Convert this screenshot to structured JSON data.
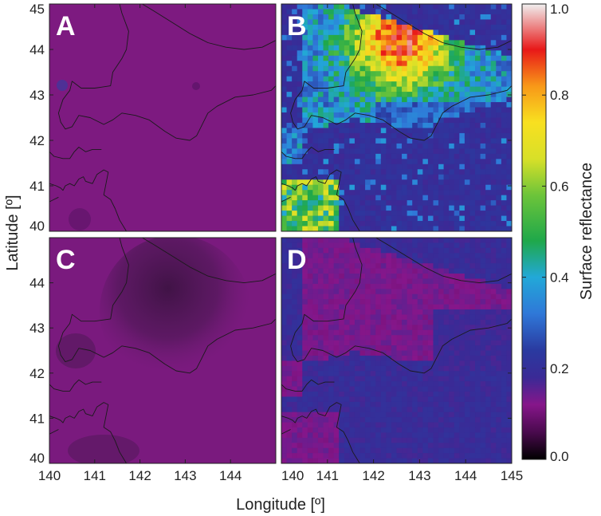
{
  "chart_data": {
    "type": "heatmap",
    "xlabel": "Longitude [º]",
    "ylabel": "Latitude [º]",
    "colorbar_label": "Surface reflectance",
    "xlim": [
      140,
      145
    ],
    "ylim": [
      40,
      45
    ],
    "clim": [
      0.0,
      1.0
    ],
    "x_ticks": [
      "140",
      "141",
      "142",
      "143",
      "144",
      "145"
    ],
    "x_ticks_left_panels": [
      "140",
      "141",
      "142",
      "143",
      "144"
    ],
    "y_ticks": [
      "40",
      "41",
      "42",
      "43",
      "44",
      "45"
    ],
    "y_ticks_lower_panels": [
      "40",
      "41",
      "42",
      "43",
      "44"
    ],
    "colorbar_ticks": [
      "0.0",
      "0.2",
      "0.4",
      "0.6",
      "0.8",
      "1.0"
    ],
    "colormap": [
      "#000000",
      "#6a0f6e",
      "#8a1a8a",
      "#2a2a90",
      "#2f4fc8",
      "#2aa0e8",
      "#2ec04a",
      "#a8d84a",
      "#f8e820",
      "#f89818",
      "#e81818",
      "#f0f0f0"
    ],
    "panels": [
      {
        "letter": "A",
        "base_reflectance": 0.12,
        "description_level": "uniform low"
      },
      {
        "letter": "B",
        "base_reflectance": 0.22,
        "land_reflectance_range": [
          0.3,
          0.9
        ],
        "peak_reflectance": 0.95,
        "peak_location": [
          142.6,
          44.2
        ]
      },
      {
        "letter": "C",
        "base_reflectance": 0.12,
        "dark_region_reflectance": 0.06
      },
      {
        "letter": "D",
        "base_reflectance": 0.15,
        "ocean_reflectance": 0.2,
        "land_reflectance": 0.13
      }
    ]
  }
}
